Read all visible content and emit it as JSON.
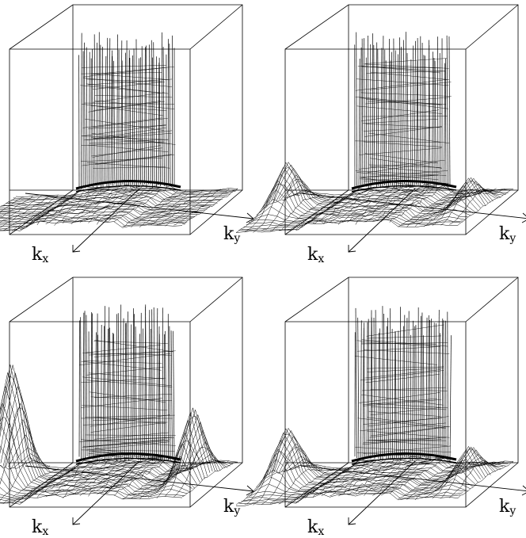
{
  "axes": {
    "x_label_main": "k",
    "x_label_sub": "x",
    "y_label_main": "k",
    "y_label_sub": "y"
  },
  "panels": [
    {
      "id": "top-left",
      "side_peaks": "none"
    },
    {
      "id": "top-right",
      "side_peaks": "small"
    },
    {
      "id": "bottom-left",
      "side_peaks": "large"
    },
    {
      "id": "bottom-right",
      "side_peaks": "medium"
    }
  ],
  "colors": {
    "line": "#000000",
    "background": "#ffffff"
  }
}
